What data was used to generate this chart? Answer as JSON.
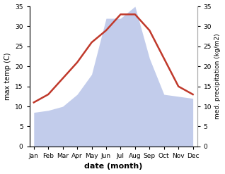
{
  "months": [
    "Jan",
    "Feb",
    "Mar",
    "Apr",
    "May",
    "Jun",
    "Jul",
    "Aug",
    "Sep",
    "Oct",
    "Nov",
    "Dec"
  ],
  "max_temp": [
    11,
    13,
    17,
    21,
    26,
    29,
    33,
    33,
    29,
    22,
    15,
    13
  ],
  "precipitation": [
    8.5,
    9,
    10,
    13,
    18,
    32,
    32,
    35,
    22,
    13,
    12.5,
    12
  ],
  "temp_color": "#c0392b",
  "precip_fill_color": "#b8c4e8",
  "background_color": "#ffffff",
  "xlabel": "date (month)",
  "ylabel_left": "max temp (C)",
  "ylabel_right": "med. precipitation (kg/m2)",
  "ylim_left": [
    0,
    35
  ],
  "ylim_right": [
    0,
    35
  ],
  "yticks_left": [
    0,
    5,
    10,
    15,
    20,
    25,
    30,
    35
  ],
  "yticks_right": [
    0,
    5,
    10,
    15,
    20,
    25,
    30,
    35
  ],
  "temp_linewidth": 1.8,
  "figsize": [
    3.18,
    2.47
  ],
  "dpi": 100
}
